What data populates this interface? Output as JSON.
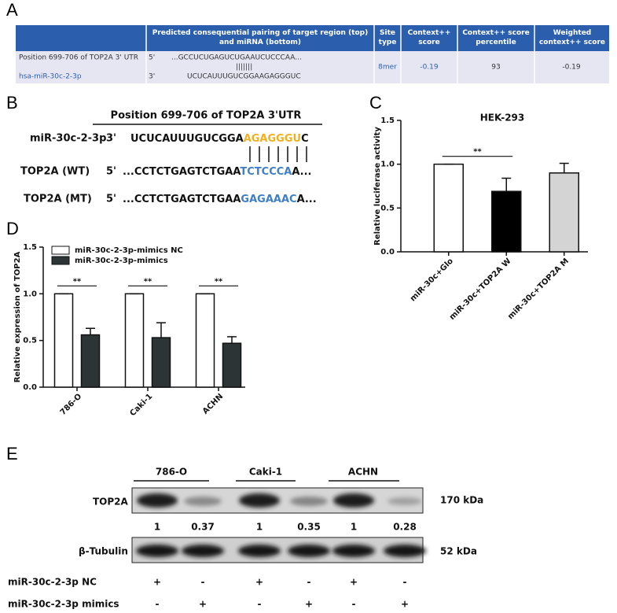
{
  "panel_a": {
    "label": "A",
    "header": [
      "Predicted consequential pairing of target region (top) and miRNA (bottom)",
      "Site type",
      "Context++ score",
      "Context++ score percentile",
      "Weighted context++ score"
    ],
    "row": {
      "position": "Position 699-706 of TOP2A 3' UTR",
      "mirna": "hsa-miR-30c-2-3p",
      "top_prime": "5'",
      "top_seq": "...GCCUCUGAGUCUGAAUCUCCCAA...",
      "pairing": "|||||||",
      "bottom_prime": "3'",
      "bottom_seq": "UCUCAUUUGUCGGAAGAGGGUC",
      "site_type": "8mer",
      "context_score": "-0.19",
      "percentile": "93",
      "weighted": "-0.19"
    }
  },
  "panel_b": {
    "label": "B",
    "title": "Position 699-706 of TOP2A  3'UTR",
    "rows": [
      {
        "name": "miR-30c-2-3p",
        "prime": "3'",
        "seq": [
          "UCUCAUUUGUCGGA",
          "AGAGGGU",
          "C"
        ]
      },
      {
        "name": "TOP2A (WT)",
        "prime": "5'",
        "seq": [
          "...CCTCTGAGTCTGAA",
          "TCTCCCA",
          "A..."
        ]
      },
      {
        "name": "TOP2A (MT)",
        "prime": "5'",
        "seq": [
          "...CCTCTGAGTCTGAA",
          "GAGAAAC",
          "A..."
        ]
      }
    ]
  },
  "chart_data": [
    {
      "type": "bar",
      "panel": "C",
      "title": "HEK-293",
      "y_label": "Relative luciferase activity",
      "categories": [
        "miR-30c+Glo",
        "miR-30c+TOP2A W",
        "miR-30c+TOP2A M"
      ],
      "values": [
        1.0,
        0.69,
        0.9
      ],
      "errors": [
        0,
        0.15,
        0.11
      ],
      "colors": [
        "#ffffff",
        "#000000",
        "#d4d4d4"
      ],
      "ylim": [
        0,
        1.5
      ],
      "yticks": [
        {
          "value": 0,
          "label": "0.0"
        },
        {
          "value": 0.5,
          "label": "0.5"
        },
        {
          "value": 1,
          "label": "1.0"
        },
        {
          "value": 1.5,
          "label": "1.5"
        }
      ],
      "annotations": [
        "**"
      ]
    },
    {
      "type": "bar",
      "panel": "D",
      "y_label": "Relative expression of TOP2A",
      "categories": [
        "786-O",
        "Caki-1",
        "ACHN"
      ],
      "series": [
        {
          "name": "miR-30c-2-3p-mimics NC",
          "color": "#ffffff",
          "values": [
            1,
            1,
            1
          ],
          "errors": [
            0,
            0,
            0
          ]
        },
        {
          "name": "miR-30c-2-3p-mimics",
          "color": "#2d3436",
          "values": [
            0.56,
            0.53,
            0.47
          ],
          "errors": [
            0.07,
            0.16,
            0.07
          ]
        }
      ],
      "ylim": [
        0,
        1.5
      ],
      "yticks": [
        {
          "value": 0,
          "label": "0.0"
        },
        {
          "value": 0.5,
          "label": "0.5"
        },
        {
          "value": 1,
          "label": "1.0"
        },
        {
          "value": 1.5,
          "label": "1.5"
        }
      ],
      "annotations": [
        "**",
        "**",
        "**"
      ]
    }
  ],
  "panel_e": {
    "label": "E",
    "cell_lines": [
      "786-O",
      "Caki-1",
      "ACHN"
    ],
    "top2a": {
      "name": "TOP2A",
      "size": "170 kDa",
      "quant": [
        "1",
        "0.37",
        "1",
        "0.35",
        "1",
        "0.28"
      ]
    },
    "tubulin": {
      "name": "β-Tubulin",
      "size": "52 kDa"
    },
    "conditions": [
      {
        "name": "miR-30c-2-3p NC",
        "signs": [
          "+",
          "-",
          "+",
          "-",
          "+",
          "-"
        ]
      },
      {
        "name": "miR-30c-2-3p mimics",
        "signs": [
          "-",
          "+",
          "-",
          "+",
          "-",
          "+"
        ]
      }
    ]
  }
}
